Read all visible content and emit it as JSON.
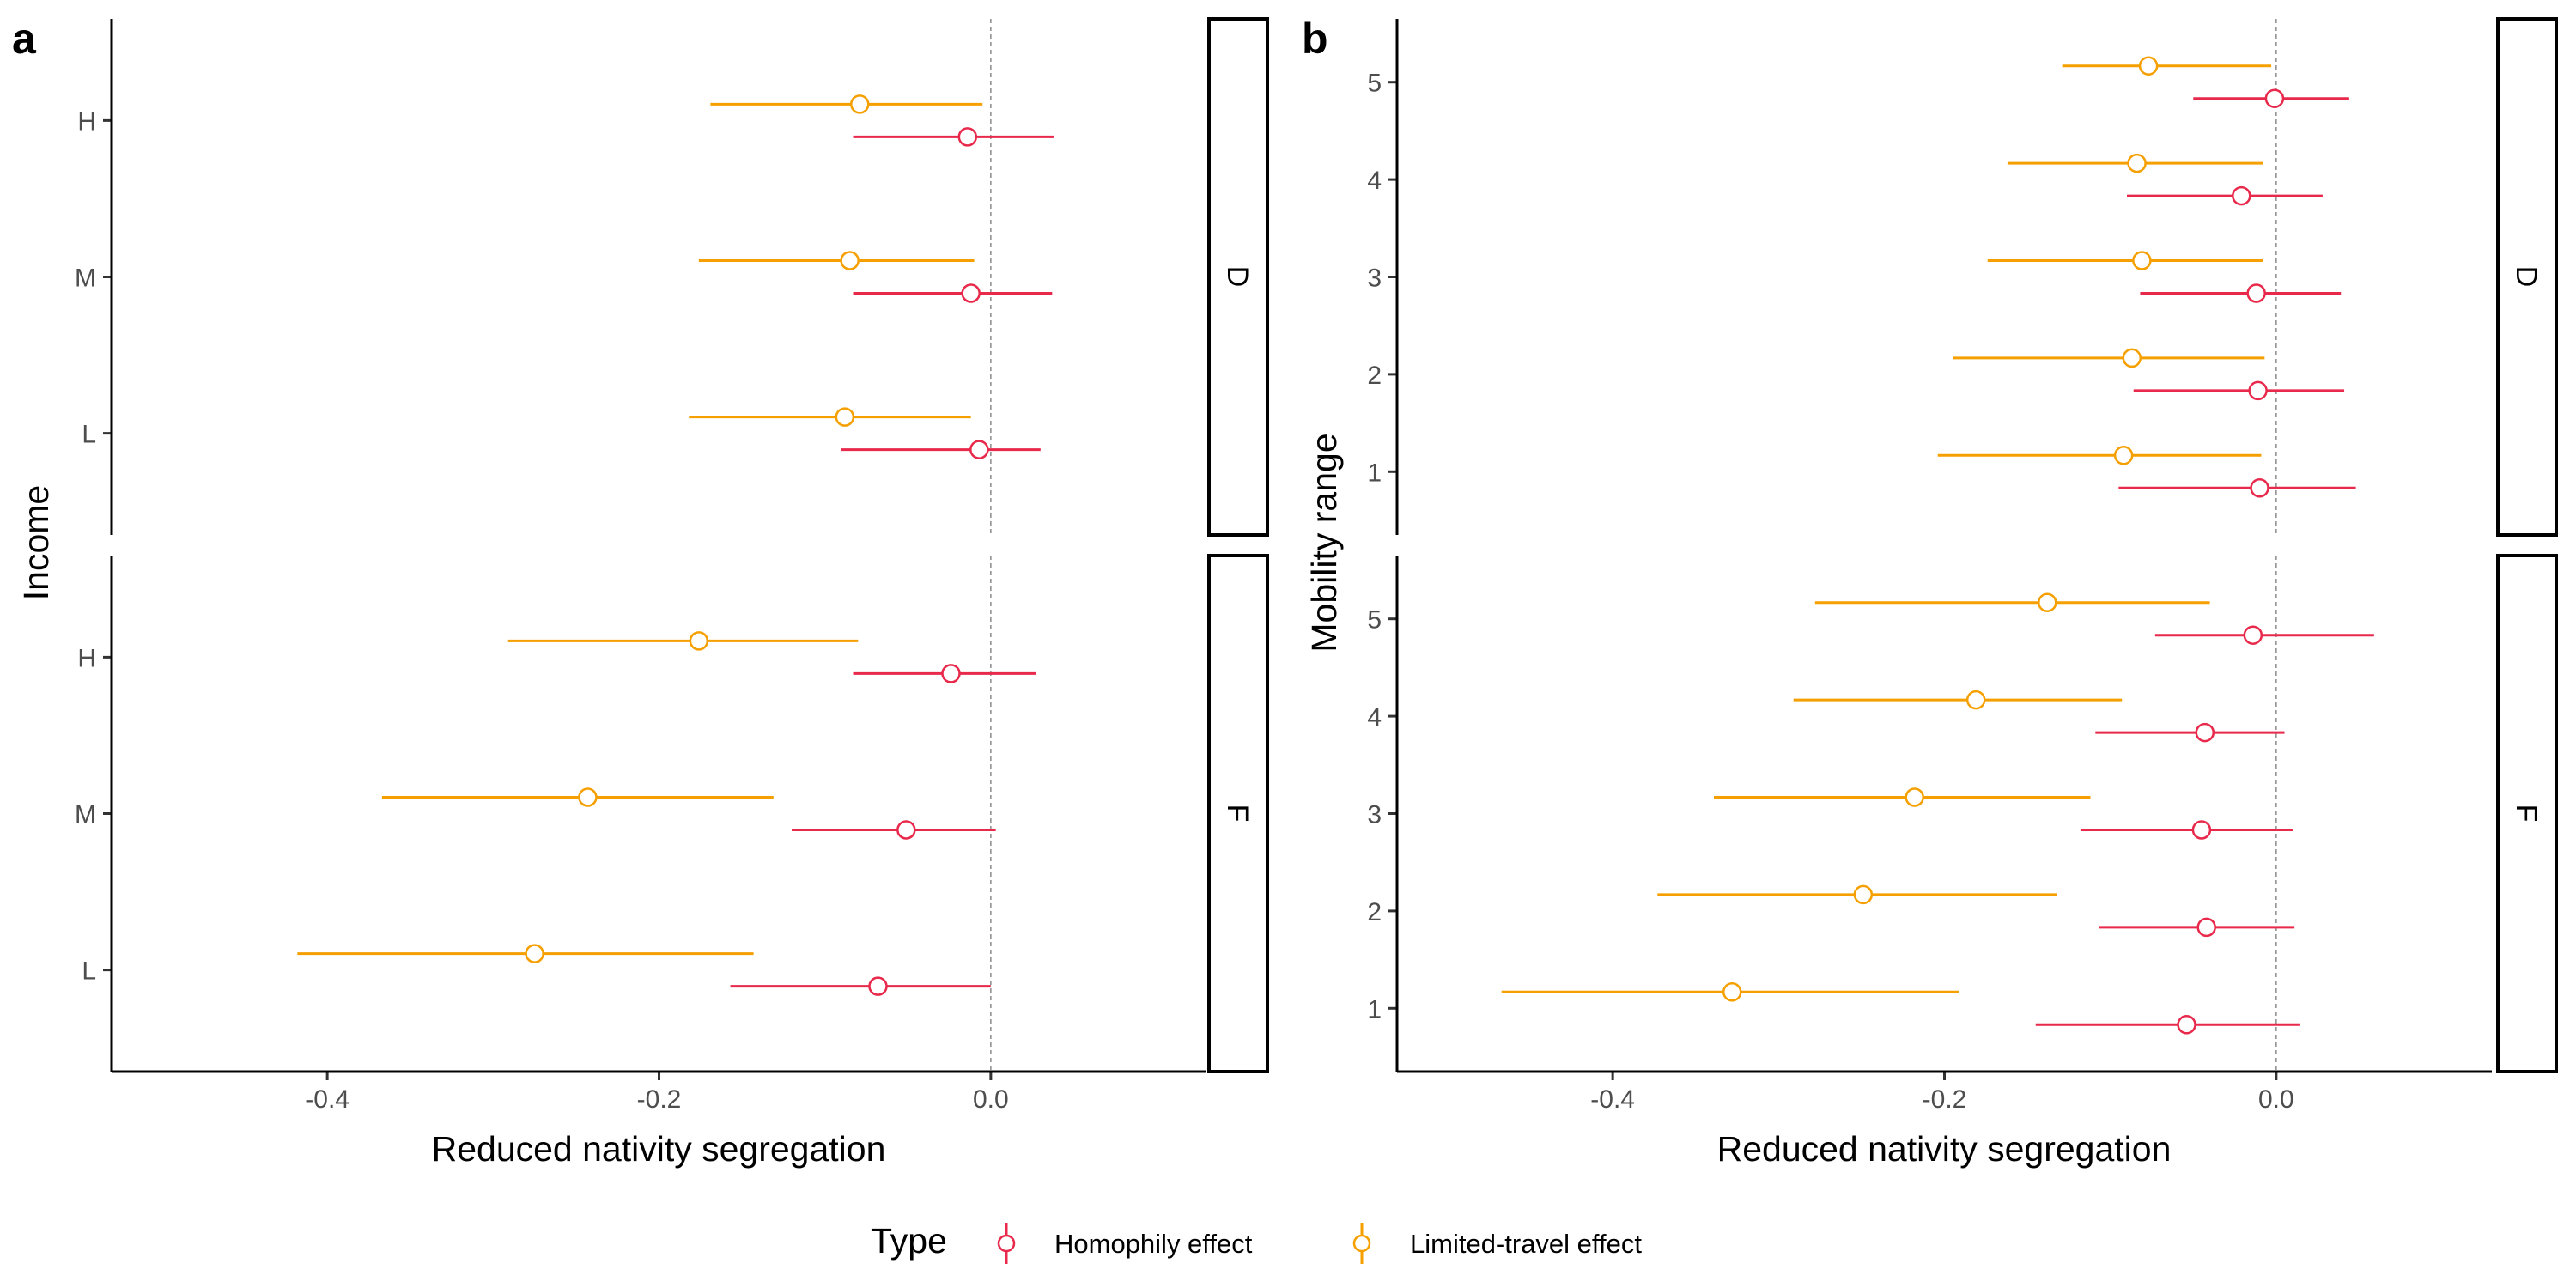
{
  "colors": {
    "homophily": "#e8294b",
    "limited_travel": "#f5a000",
    "zero_line": "#8c8c8c"
  },
  "legend": {
    "title": "Type",
    "items": [
      {
        "key": "homophily",
        "label": "Homophily effect"
      },
      {
        "key": "limited_travel",
        "label": "Limited-travel effect"
      }
    ]
  },
  "chart_data": [
    {
      "type": "dot-whisker",
      "panel_label": "a",
      "xlabel": "Reduced nativity segregation",
      "ylabel": "Income",
      "xlim": [
        -0.53,
        0.13
      ],
      "xticks": [
        -0.4,
        -0.2,
        0.0
      ],
      "xtick_labels": [
        "-0.4",
        "-0.2",
        "0.0"
      ],
      "categories": [
        "L",
        "M",
        "H"
      ],
      "facets": [
        {
          "label": "D",
          "series": [
            {
              "key": "limited_travel",
              "name": "Limited-travel effect",
              "points": [
                {
                  "y": "L",
                  "estimate": -0.088,
                  "lower": -0.182,
                  "upper": -0.012
                },
                {
                  "y": "M",
                  "estimate": -0.085,
                  "lower": -0.176,
                  "upper": -0.01
                },
                {
                  "y": "H",
                  "estimate": -0.079,
                  "lower": -0.169,
                  "upper": -0.005
                }
              ]
            },
            {
              "key": "homophily",
              "name": "Homophily effect",
              "points": [
                {
                  "y": "L",
                  "estimate": -0.007,
                  "lower": -0.09,
                  "upper": 0.03
                },
                {
                  "y": "M",
                  "estimate": -0.012,
                  "lower": -0.083,
                  "upper": 0.037
                },
                {
                  "y": "H",
                  "estimate": -0.014,
                  "lower": -0.083,
                  "upper": 0.038
                }
              ]
            }
          ]
        },
        {
          "label": "F",
          "series": [
            {
              "key": "limited_travel",
              "name": "Limited-travel effect",
              "points": [
                {
                  "y": "L",
                  "estimate": -0.275,
                  "lower": -0.418,
                  "upper": -0.143
                },
                {
                  "y": "M",
                  "estimate": -0.243,
                  "lower": -0.367,
                  "upper": -0.131
                },
                {
                  "y": "H",
                  "estimate": -0.176,
                  "lower": -0.291,
                  "upper": -0.08
                }
              ]
            },
            {
              "key": "homophily",
              "name": "Homophily effect",
              "points": [
                {
                  "y": "L",
                  "estimate": -0.068,
                  "lower": -0.157,
                  "upper": 0.0
                },
                {
                  "y": "M",
                  "estimate": -0.051,
                  "lower": -0.12,
                  "upper": 0.003
                },
                {
                  "y": "H",
                  "estimate": -0.024,
                  "lower": -0.083,
                  "upper": 0.027
                }
              ]
            }
          ]
        }
      ]
    },
    {
      "type": "dot-whisker",
      "panel_label": "b",
      "xlabel": "Reduced nativity segregation",
      "ylabel": "Mobility range",
      "xlim": [
        -0.53,
        0.13
      ],
      "xticks": [
        -0.4,
        -0.2,
        0.0
      ],
      "xtick_labels": [
        "-0.4",
        "-0.2",
        "0.0"
      ],
      "categories": [
        "1",
        "2",
        "3",
        "4",
        "5"
      ],
      "facets": [
        {
          "label": "D",
          "series": [
            {
              "key": "limited_travel",
              "name": "Limited-travel effect",
              "points": [
                {
                  "y": "1",
                  "estimate": -0.092,
                  "lower": -0.204,
                  "upper": -0.009
                },
                {
                  "y": "2",
                  "estimate": -0.087,
                  "lower": -0.195,
                  "upper": -0.007
                },
                {
                  "y": "3",
                  "estimate": -0.081,
                  "lower": -0.174,
                  "upper": -0.008
                },
                {
                  "y": "4",
                  "estimate": -0.084,
                  "lower": -0.162,
                  "upper": -0.008
                },
                {
                  "y": "5",
                  "estimate": -0.077,
                  "lower": -0.129,
                  "upper": -0.003
                }
              ]
            },
            {
              "key": "homophily",
              "name": "Homophily effect",
              "points": [
                {
                  "y": "1",
                  "estimate": -0.01,
                  "lower": -0.095,
                  "upper": 0.048
                },
                {
                  "y": "2",
                  "estimate": -0.011,
                  "lower": -0.086,
                  "upper": 0.041
                },
                {
                  "y": "3",
                  "estimate": -0.012,
                  "lower": -0.082,
                  "upper": 0.039
                },
                {
                  "y": "4",
                  "estimate": -0.021,
                  "lower": -0.09,
                  "upper": 0.028
                },
                {
                  "y": "5",
                  "estimate": -0.001,
                  "lower": -0.05,
                  "upper": 0.044
                }
              ]
            }
          ]
        },
        {
          "label": "F",
          "series": [
            {
              "key": "limited_travel",
              "name": "Limited-travel effect",
              "points": [
                {
                  "y": "1",
                  "estimate": -0.328,
                  "lower": -0.467,
                  "upper": -0.191
                },
                {
                  "y": "2",
                  "estimate": -0.249,
                  "lower": -0.373,
                  "upper": -0.132
                },
                {
                  "y": "3",
                  "estimate": -0.218,
                  "lower": -0.339,
                  "upper": -0.112
                },
                {
                  "y": "4",
                  "estimate": -0.181,
                  "lower": -0.291,
                  "upper": -0.093
                },
                {
                  "y": "5",
                  "estimate": -0.138,
                  "lower": -0.278,
                  "upper": -0.04
                }
              ]
            },
            {
              "key": "homophily",
              "name": "Homophily effect",
              "points": [
                {
                  "y": "1",
                  "estimate": -0.054,
                  "lower": -0.145,
                  "upper": 0.014
                },
                {
                  "y": "2",
                  "estimate": -0.042,
                  "lower": -0.107,
                  "upper": 0.011
                },
                {
                  "y": "3",
                  "estimate": -0.045,
                  "lower": -0.118,
                  "upper": 0.01
                },
                {
                  "y": "4",
                  "estimate": -0.043,
                  "lower": -0.109,
                  "upper": 0.005
                },
                {
                  "y": "5",
                  "estimate": -0.014,
                  "lower": -0.073,
                  "upper": 0.059
                }
              ]
            }
          ]
        }
      ]
    }
  ]
}
